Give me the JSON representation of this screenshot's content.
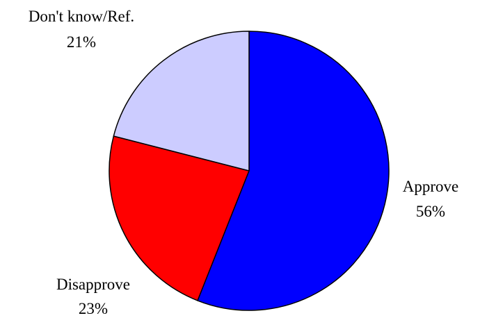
{
  "chart_data": {
    "type": "pie",
    "title": "",
    "slices": [
      {
        "label": "Approve",
        "value": 56,
        "display": "56%",
        "color": "#0000ff"
      },
      {
        "label": "Disapprove",
        "value": 23,
        "display": "23%",
        "color": "#ff0000"
      },
      {
        "label": "Don't know/Ref.",
        "value": 21,
        "display": "21%",
        "color": "#ccccff"
      }
    ],
    "start_position": "12 o'clock",
    "direction": "clockwise",
    "outline_color": "#000000",
    "legend": "none"
  }
}
